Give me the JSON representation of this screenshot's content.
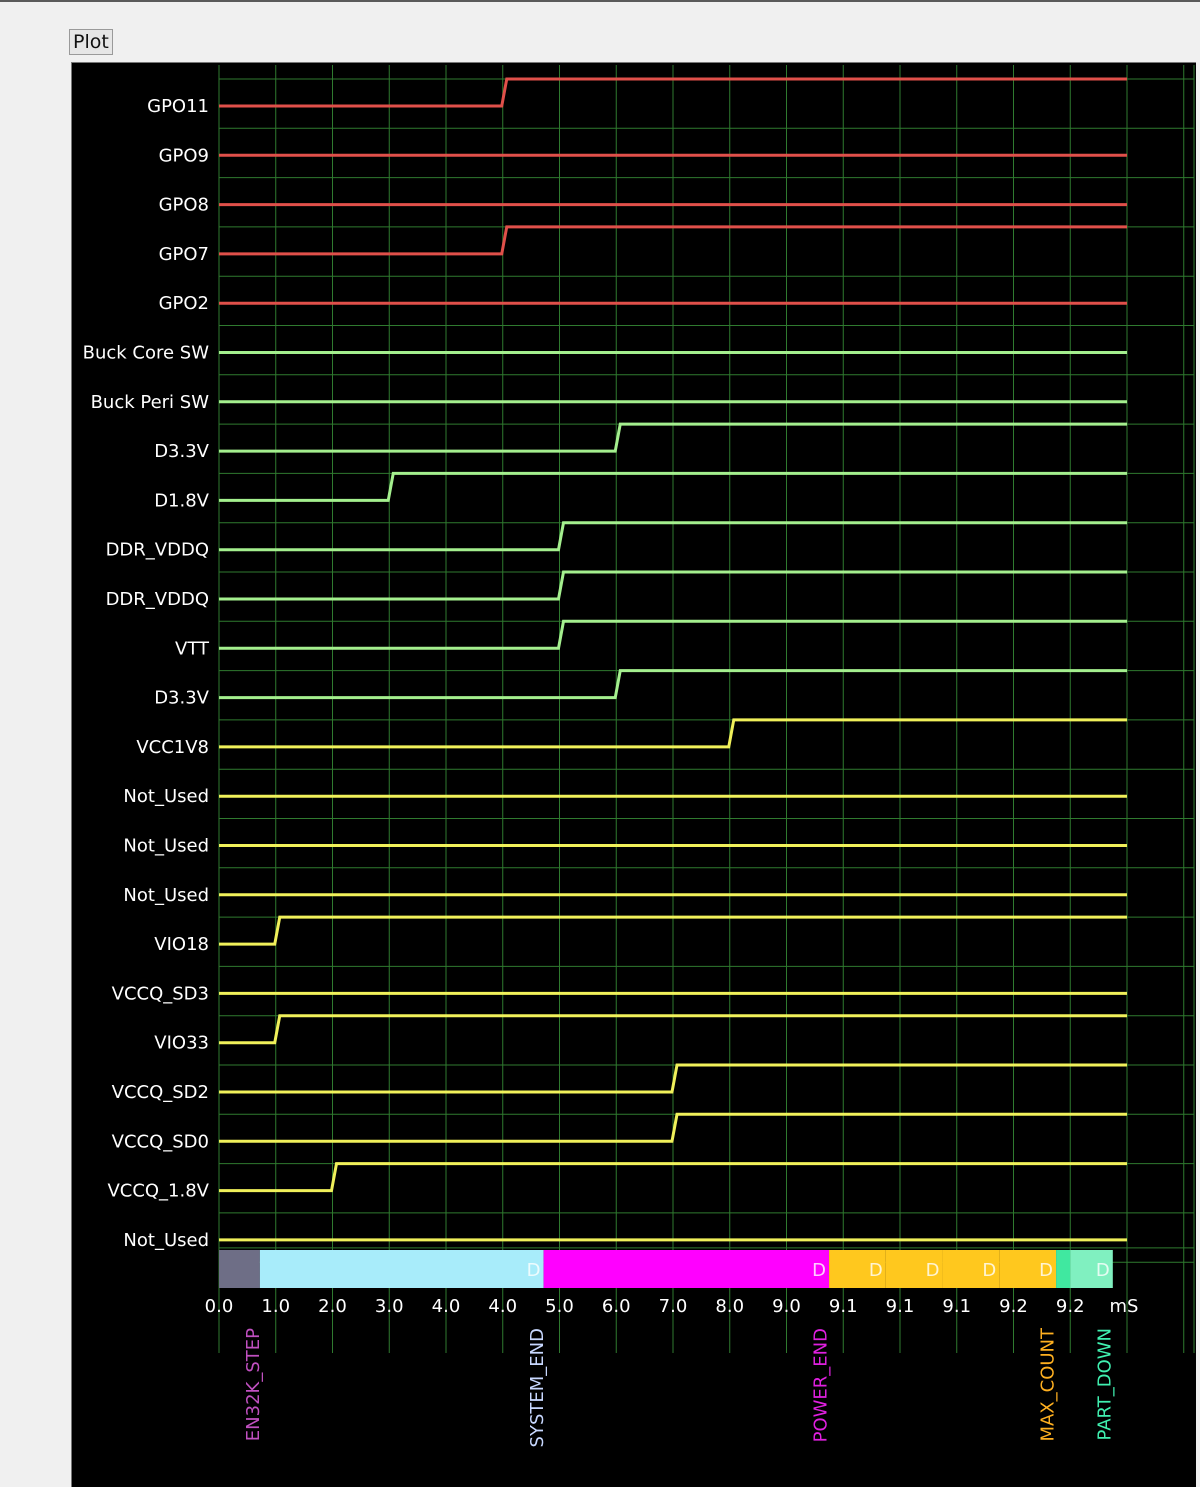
{
  "window": {
    "tab_label": "Plot"
  },
  "chart_data": {
    "type": "line",
    "subtype": "digital timing / power sequence",
    "unit_label": "mS",
    "x_tick_labels": [
      "0.0",
      "1.0",
      "2.0",
      "3.0",
      "4.0",
      "4.0",
      "5.0",
      "6.0",
      "7.0",
      "8.0",
      "9.0",
      "9.1",
      "9.1",
      "9.1",
      "9.2",
      "9.2"
    ],
    "xlim_divisions": [
      0,
      16
    ],
    "grid": true,
    "colors": {
      "background": "#000000",
      "grid": "#2f7a2f",
      "gpo": "#e0504a",
      "buck": "#a4ef8e",
      "ldo": "#f0f05a"
    },
    "series": [
      {
        "name": "GPO11",
        "step_at": 5,
        "color": "gpo"
      },
      {
        "name": "GPO9",
        "step_at": null,
        "color": "gpo"
      },
      {
        "name": "GPO8",
        "step_at": null,
        "color": "gpo"
      },
      {
        "name": "GPO7",
        "step_at": 5,
        "color": "gpo"
      },
      {
        "name": "GPO2",
        "step_at": null,
        "color": "gpo"
      },
      {
        "name": "Buck Core SW",
        "step_at": null,
        "color": "buck"
      },
      {
        "name": "Buck Peri SW",
        "step_at": null,
        "color": "buck"
      },
      {
        "name": "D3.3V",
        "step_at": 7,
        "color": "buck"
      },
      {
        "name": "D1.8V",
        "step_at": 3,
        "color": "buck"
      },
      {
        "name": "DDR_VDDQ",
        "step_at": 6,
        "color": "buck"
      },
      {
        "name": "DDR_VDDQ",
        "step_at": 6,
        "color": "buck"
      },
      {
        "name": "VTT",
        "step_at": 6,
        "color": "buck"
      },
      {
        "name": "D3.3V",
        "step_at": 7,
        "color": "buck"
      },
      {
        "name": "VCC1V8",
        "step_at": 9,
        "color": "ldo"
      },
      {
        "name": "Not_Used",
        "step_at": null,
        "color": "ldo"
      },
      {
        "name": "Not_Used",
        "step_at": null,
        "color": "ldo"
      },
      {
        "name": "Not_Used",
        "step_at": null,
        "color": "ldo"
      },
      {
        "name": "VIO18",
        "step_at": 1,
        "color": "ldo"
      },
      {
        "name": "VCCQ_SD3",
        "step_at": null,
        "color": "ldo"
      },
      {
        "name": "VIO33",
        "step_at": 1,
        "color": "ldo"
      },
      {
        "name": "VCCQ_SD2",
        "step_at": 8,
        "color": "ldo"
      },
      {
        "name": "VCCQ_SD0",
        "step_at": 8,
        "color": "ldo"
      },
      {
        "name": "VCCQ_1.8V",
        "step_at": 2,
        "color": "ldo"
      },
      {
        "name": "Not_Used",
        "step_at": null,
        "color": "ldo"
      }
    ],
    "phase_bar": [
      {
        "start": 0,
        "end": 0.72,
        "color": "#6e6e86",
        "label": ""
      },
      {
        "start": 0.72,
        "end": 5.72,
        "color": "#a8ecfa",
        "label": "D"
      },
      {
        "start": 5.72,
        "end": 10.75,
        "color": "#ff00ff",
        "label": "D"
      },
      {
        "start": 10.75,
        "end": 11.75,
        "color": "#ffc81e",
        "label": "D"
      },
      {
        "start": 11.75,
        "end": 12.75,
        "color": "#ffc81e",
        "label": "D"
      },
      {
        "start": 12.75,
        "end": 13.75,
        "color": "#ffc81e",
        "label": "D"
      },
      {
        "start": 13.75,
        "end": 14.75,
        "color": "#ffc81e",
        "label": "D"
      },
      {
        "start": 14.75,
        "end": 15.0,
        "color": "#40e8a0",
        "label": ""
      },
      {
        "start": 15.0,
        "end": 15.75,
        "color": "#80f0c0",
        "label": "D"
      }
    ],
    "markers": [
      {
        "label": "EN32K_STEP",
        "at": 0.6,
        "color": "#c050c0"
      },
      {
        "label": "SYSTEM_END",
        "at": 5.6,
        "color": "#c8d8ff"
      },
      {
        "label": "POWER_END",
        "at": 10.6,
        "color": "#e020e0"
      },
      {
        "label": "MAX_COUNT",
        "at": 14.6,
        "color": "#ffb020"
      },
      {
        "label": "PART_DOWN",
        "at": 15.6,
        "color": "#40f0b0"
      }
    ]
  }
}
